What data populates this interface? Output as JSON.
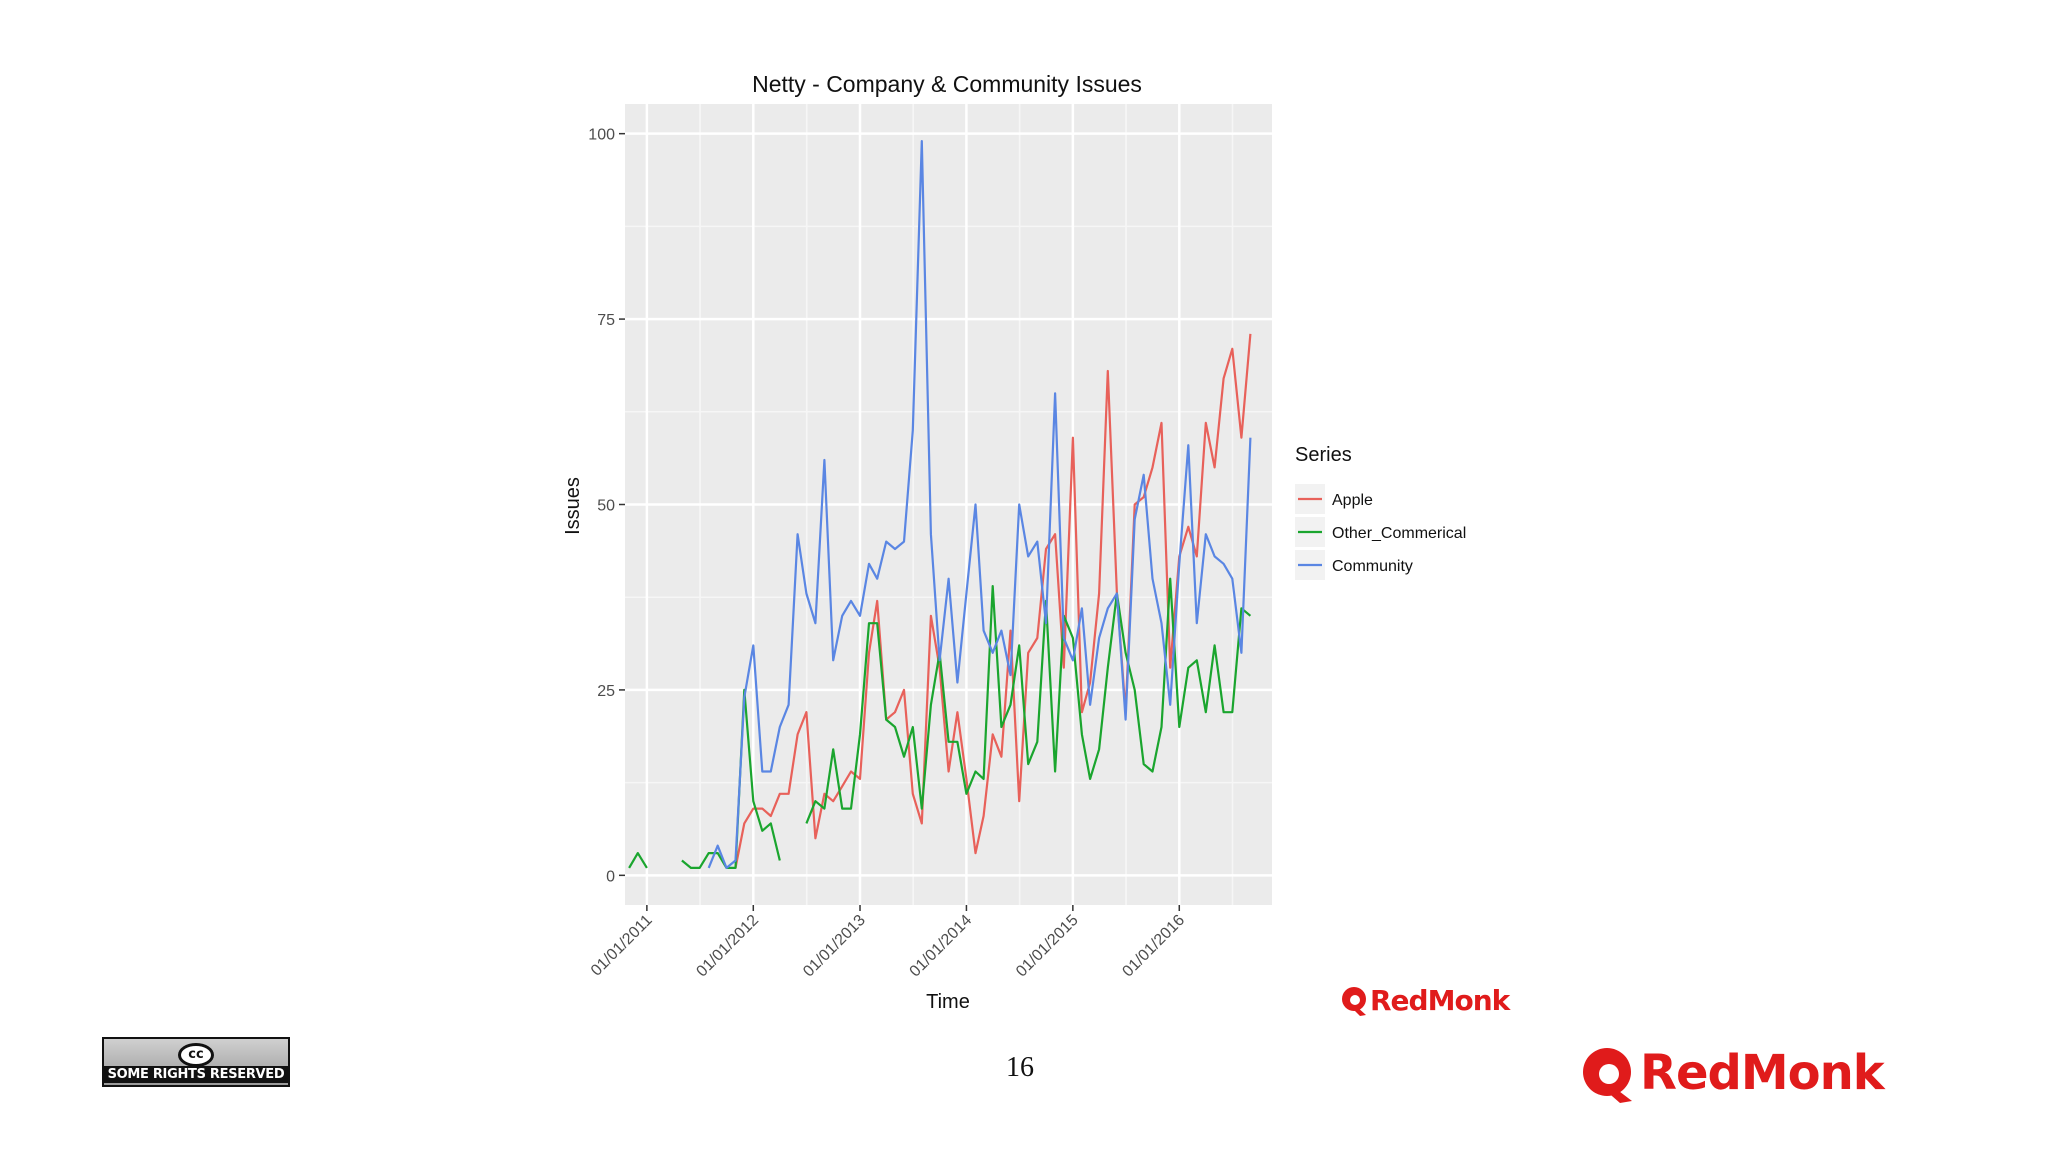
{
  "slide": {
    "page_number": "16",
    "license_badge": {
      "logo": "cc",
      "text": "SOME RIGHTS RESERVED"
    },
    "brand": {
      "name": "RedMonk",
      "color": "#e01b1b"
    }
  },
  "chart_data": {
    "type": "line",
    "title": "Netty - Company & Community Issues",
    "xlabel": "Time",
    "ylabel": "Issues",
    "ylim": [
      -4,
      104
    ],
    "xlim": [
      "2010-10-18",
      "2016-11-14"
    ],
    "y_ticks": [
      0,
      25,
      50,
      75,
      100
    ],
    "x_ticks": [
      {
        "date": "2011-01-01",
        "label": "01/01/2011"
      },
      {
        "date": "2012-01-01",
        "label": "01/01/2012"
      },
      {
        "date": "2013-01-01",
        "label": "01/01/2013"
      },
      {
        "date": "2014-01-01",
        "label": "01/01/2014"
      },
      {
        "date": "2015-01-01",
        "label": "01/01/2015"
      },
      {
        "date": "2016-01-01",
        "label": "01/01/2016"
      }
    ],
    "legend": {
      "title": "Series",
      "position": "right"
    },
    "grid": true,
    "panel_background": "#ebebeb",
    "series": [
      {
        "name": "Apple",
        "color": "#e8615a",
        "points": [
          [
            "2011-11-01",
            1
          ],
          [
            "2011-12-01",
            7
          ],
          [
            "2012-01-01",
            9
          ],
          [
            "2012-02-01",
            9
          ],
          [
            "2012-03-01",
            8
          ],
          [
            "2012-04-01",
            11
          ],
          [
            "2012-05-01",
            11
          ],
          [
            "2012-06-01",
            19
          ],
          [
            "2012-07-01",
            22
          ],
          [
            "2012-08-01",
            5
          ],
          [
            "2012-09-01",
            11
          ],
          [
            "2012-10-01",
            10
          ],
          [
            "2012-11-01",
            12
          ],
          [
            "2012-12-01",
            14
          ],
          [
            "2013-01-01",
            13
          ],
          [
            "2013-02-01",
            30
          ],
          [
            "2013-03-01",
            37
          ],
          [
            "2013-04-01",
            21
          ],
          [
            "2013-05-01",
            22
          ],
          [
            "2013-06-01",
            25
          ],
          [
            "2013-07-01",
            11
          ],
          [
            "2013-08-01",
            7
          ],
          [
            "2013-09-01",
            35
          ],
          [
            "2013-10-01",
            28
          ],
          [
            "2013-11-01",
            14
          ],
          [
            "2013-12-01",
            22
          ],
          [
            "2014-01-01",
            13
          ],
          [
            "2014-02-01",
            3
          ],
          [
            "2014-03-01",
            8
          ],
          [
            "2014-04-01",
            19
          ],
          [
            "2014-05-01",
            16
          ],
          [
            "2014-06-01",
            33
          ],
          [
            "2014-07-01",
            10
          ],
          [
            "2014-08-01",
            30
          ],
          [
            "2014-09-01",
            32
          ],
          [
            "2014-10-01",
            44
          ],
          [
            "2014-11-01",
            46
          ],
          [
            "2014-12-01",
            28
          ],
          [
            "2015-01-01",
            59
          ],
          [
            "2015-02-01",
            22
          ],
          [
            "2015-03-01",
            26
          ],
          [
            "2015-04-01",
            38
          ],
          [
            "2015-05-01",
            68
          ],
          [
            "2015-06-01",
            38
          ],
          [
            "2015-07-01",
            22
          ],
          [
            "2015-08-01",
            50
          ],
          [
            "2015-09-01",
            51
          ],
          [
            "2015-10-01",
            55
          ],
          [
            "2015-11-01",
            61
          ],
          [
            "2015-12-01",
            28
          ],
          [
            "2016-01-01",
            43
          ],
          [
            "2016-02-01",
            47
          ],
          [
            "2016-03-01",
            43
          ],
          [
            "2016-04-01",
            61
          ],
          [
            "2016-05-01",
            55
          ],
          [
            "2016-06-01",
            67
          ],
          [
            "2016-07-01",
            71
          ],
          [
            "2016-08-01",
            59
          ],
          [
            "2016-09-01",
            73
          ]
        ]
      },
      {
        "name": "Other_Commerical",
        "color": "#1aa52e",
        "points": [
          [
            "2010-11-01",
            1
          ],
          [
            "2010-12-01",
            3
          ],
          [
            "2011-01-01",
            1
          ],
          null,
          [
            "2011-05-01",
            2
          ],
          [
            "2011-06-01",
            1
          ],
          [
            "2011-07-01",
            1
          ],
          [
            "2011-08-01",
            3
          ],
          [
            "2011-09-01",
            3
          ],
          [
            "2011-10-01",
            1
          ],
          [
            "2011-11-01",
            1
          ],
          [
            "2011-12-01",
            25
          ],
          [
            "2012-01-01",
            10
          ],
          [
            "2012-02-01",
            6
          ],
          [
            "2012-03-01",
            7
          ],
          [
            "2012-04-01",
            2
          ],
          null,
          [
            "2012-07-01",
            7
          ],
          [
            "2012-08-01",
            10
          ],
          [
            "2012-09-01",
            9
          ],
          [
            "2012-10-01",
            17
          ],
          [
            "2012-11-01",
            9
          ],
          [
            "2012-12-01",
            9
          ],
          [
            "2013-01-01",
            19
          ],
          [
            "2013-02-01",
            34
          ],
          [
            "2013-03-01",
            34
          ],
          [
            "2013-04-01",
            21
          ],
          [
            "2013-05-01",
            20
          ],
          [
            "2013-06-01",
            16
          ],
          [
            "2013-07-01",
            20
          ],
          [
            "2013-08-01",
            9
          ],
          [
            "2013-09-01",
            23
          ],
          [
            "2013-10-01",
            30
          ],
          [
            "2013-11-01",
            18
          ],
          [
            "2013-12-01",
            18
          ],
          [
            "2014-01-01",
            11
          ],
          [
            "2014-02-01",
            14
          ],
          [
            "2014-03-01",
            13
          ],
          [
            "2014-04-01",
            39
          ],
          [
            "2014-05-01",
            20
          ],
          [
            "2014-06-01",
            23
          ],
          [
            "2014-07-01",
            31
          ],
          [
            "2014-08-01",
            15
          ],
          [
            "2014-09-01",
            18
          ],
          [
            "2014-10-01",
            37
          ],
          [
            "2014-11-01",
            14
          ],
          [
            "2014-12-01",
            35
          ],
          [
            "2015-01-01",
            32
          ],
          [
            "2015-02-01",
            19
          ],
          [
            "2015-03-01",
            13
          ],
          [
            "2015-04-01",
            17
          ],
          [
            "2015-05-01",
            28
          ],
          [
            "2015-06-01",
            38
          ],
          [
            "2015-07-01",
            30
          ],
          [
            "2015-08-01",
            25
          ],
          [
            "2015-09-01",
            15
          ],
          [
            "2015-10-01",
            14
          ],
          [
            "2015-11-01",
            20
          ],
          [
            "2015-12-01",
            40
          ],
          [
            "2016-01-01",
            20
          ],
          [
            "2016-02-01",
            28
          ],
          [
            "2016-03-01",
            29
          ],
          [
            "2016-04-01",
            22
          ],
          [
            "2016-05-01",
            31
          ],
          [
            "2016-06-01",
            22
          ],
          [
            "2016-07-01",
            22
          ],
          [
            "2016-08-01",
            36
          ],
          [
            "2016-09-01",
            35
          ]
        ]
      },
      {
        "name": "Community",
        "color": "#5a86e3",
        "points": [
          [
            "2011-08-01",
            1
          ],
          [
            "2011-09-01",
            4
          ],
          [
            "2011-10-01",
            1
          ],
          [
            "2011-11-01",
            2
          ],
          [
            "2011-12-01",
            24
          ],
          [
            "2012-01-01",
            31
          ],
          [
            "2012-02-01",
            14
          ],
          [
            "2012-03-01",
            14
          ],
          [
            "2012-04-01",
            20
          ],
          [
            "2012-05-01",
            23
          ],
          [
            "2012-06-01",
            46
          ],
          [
            "2012-07-01",
            38
          ],
          [
            "2012-08-01",
            34
          ],
          [
            "2012-09-01",
            56
          ],
          [
            "2012-10-01",
            29
          ],
          [
            "2012-11-01",
            35
          ],
          [
            "2012-12-01",
            37
          ],
          [
            "2013-01-01",
            35
          ],
          [
            "2013-02-01",
            42
          ],
          [
            "2013-03-01",
            40
          ],
          [
            "2013-04-01",
            45
          ],
          [
            "2013-05-01",
            44
          ],
          [
            "2013-06-01",
            45
          ],
          [
            "2013-07-01",
            60
          ],
          [
            "2013-08-01",
            99
          ],
          [
            "2013-09-01",
            46
          ],
          [
            "2013-10-01",
            29
          ],
          [
            "2013-11-01",
            40
          ],
          [
            "2013-12-01",
            26
          ],
          [
            "2014-01-01",
            38
          ],
          [
            "2014-02-01",
            50
          ],
          [
            "2014-03-01",
            33
          ],
          [
            "2014-04-01",
            30
          ],
          [
            "2014-05-01",
            33
          ],
          [
            "2014-06-01",
            27
          ],
          [
            "2014-07-01",
            50
          ],
          [
            "2014-08-01",
            43
          ],
          [
            "2014-09-01",
            45
          ],
          [
            "2014-10-01",
            34
          ],
          [
            "2014-11-01",
            65
          ],
          [
            "2014-12-01",
            32
          ],
          [
            "2015-01-01",
            29
          ],
          [
            "2015-02-01",
            36
          ],
          [
            "2015-03-01",
            23
          ],
          [
            "2015-04-01",
            32
          ],
          [
            "2015-05-01",
            36
          ],
          [
            "2015-06-01",
            38
          ],
          [
            "2015-07-01",
            21
          ],
          [
            "2015-08-01",
            48
          ],
          [
            "2015-09-01",
            54
          ],
          [
            "2015-10-01",
            40
          ],
          [
            "2015-11-01",
            34
          ],
          [
            "2015-12-01",
            23
          ],
          [
            "2016-01-01",
            42
          ],
          [
            "2016-02-01",
            58
          ],
          [
            "2016-03-01",
            34
          ],
          [
            "2016-04-01",
            46
          ],
          [
            "2016-05-01",
            43
          ],
          [
            "2016-06-01",
            42
          ],
          [
            "2016-07-01",
            40
          ],
          [
            "2016-08-01",
            30
          ],
          [
            "2016-09-01",
            59
          ]
        ]
      }
    ]
  }
}
